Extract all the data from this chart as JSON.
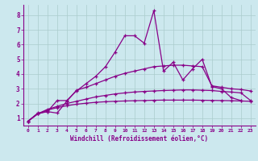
{
  "xlabel": "Windchill (Refroidissement éolien,°C)",
  "bg_color": "#cce8ee",
  "line_color": "#880088",
  "grid_color": "#bbdddd",
  "xlim": [
    -0.5,
    23.5
  ],
  "ylim": [
    0.5,
    8.7
  ],
  "xticks": [
    0,
    1,
    2,
    3,
    4,
    5,
    6,
    7,
    8,
    9,
    10,
    11,
    12,
    13,
    14,
    15,
    16,
    17,
    18,
    19,
    20,
    21,
    22,
    23
  ],
  "yticks": [
    1,
    2,
    3,
    4,
    5,
    6,
    7,
    8
  ],
  "series1_x": [
    0,
    1,
    2,
    3,
    4,
    5,
    6,
    7,
    8,
    9,
    10,
    11,
    12,
    13,
    14,
    15,
    16,
    17,
    18,
    19,
    20,
    21,
    22
  ],
  "series1_y": [
    0.8,
    1.35,
    1.45,
    2.2,
    2.2,
    2.85,
    3.35,
    3.85,
    4.5,
    5.5,
    6.6,
    6.6,
    6.1,
    8.3,
    4.2,
    4.8,
    3.6,
    4.35,
    5.0,
    3.15,
    3.0,
    2.4,
    2.2
  ],
  "series2_x": [
    0,
    1,
    2,
    3,
    4,
    5,
    6,
    7,
    8,
    9,
    10,
    11,
    12,
    13,
    14,
    15,
    16,
    17,
    18,
    19,
    20,
    21,
    22,
    23
  ],
  "series2_y": [
    0.8,
    1.3,
    1.45,
    1.35,
    2.15,
    2.9,
    3.1,
    3.35,
    3.6,
    3.85,
    4.05,
    4.2,
    4.35,
    4.5,
    4.55,
    4.6,
    4.6,
    4.55,
    4.5,
    3.2,
    3.1,
    3.0,
    2.95,
    2.85
  ],
  "series3_x": [
    0,
    1,
    2,
    3,
    4,
    5,
    6,
    7,
    8,
    9,
    10,
    11,
    12,
    13,
    14,
    15,
    16,
    17,
    18,
    19,
    20,
    21,
    22,
    23
  ],
  "series3_y": [
    0.8,
    1.3,
    1.6,
    1.8,
    2.0,
    2.15,
    2.3,
    2.45,
    2.55,
    2.65,
    2.72,
    2.78,
    2.82,
    2.85,
    2.88,
    2.9,
    2.92,
    2.92,
    2.9,
    2.88,
    2.82,
    2.78,
    2.72,
    2.2
  ],
  "series4_x": [
    0,
    1,
    2,
    3,
    4,
    5,
    6,
    7,
    8,
    9,
    10,
    11,
    12,
    13,
    14,
    15,
    16,
    17,
    18,
    19,
    20,
    21,
    22,
    23
  ],
  "series4_y": [
    0.8,
    1.3,
    1.55,
    1.72,
    1.85,
    1.95,
    2.02,
    2.08,
    2.12,
    2.15,
    2.17,
    2.19,
    2.2,
    2.22,
    2.23,
    2.23,
    2.23,
    2.23,
    2.22,
    2.21,
    2.2,
    2.19,
    2.17,
    2.15
  ]
}
